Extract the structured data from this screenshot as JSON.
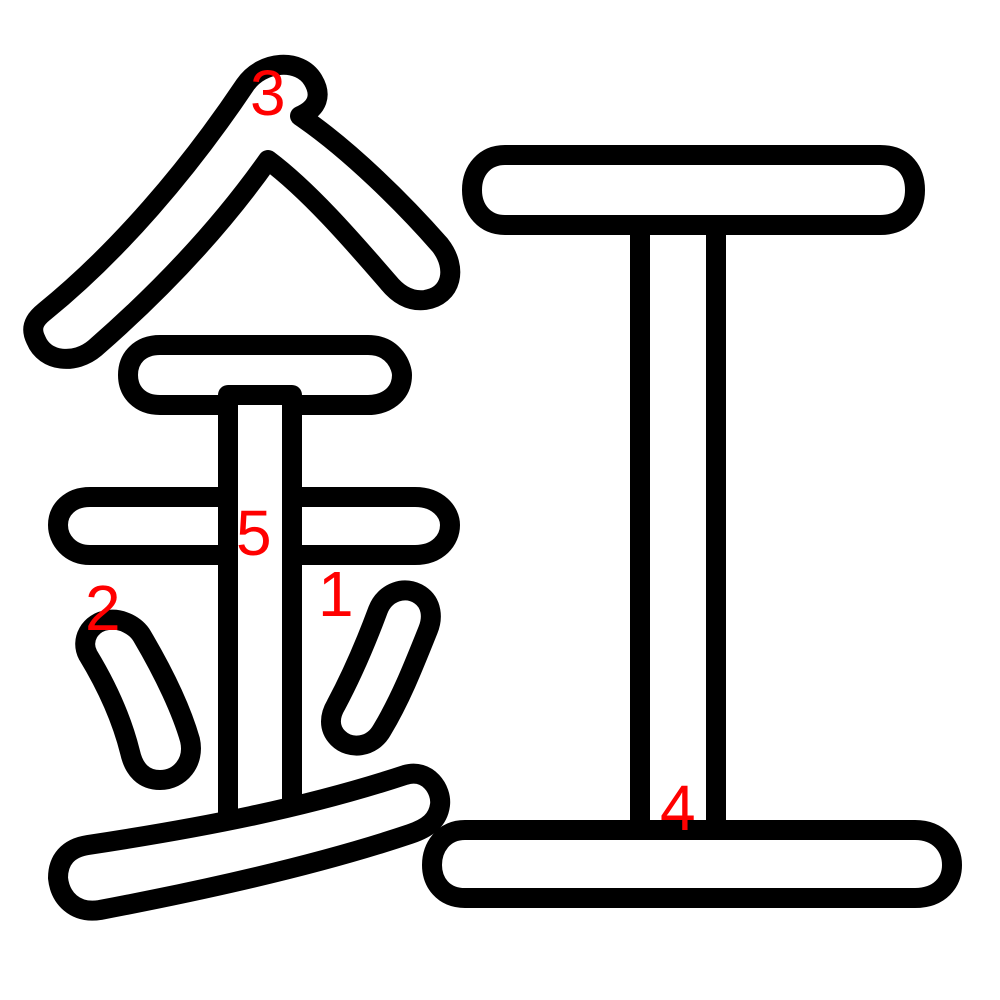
{
  "character": "釭",
  "colors": {
    "outline": "#000000",
    "fill": "#ffffff",
    "label": "#ff0000"
  },
  "stroke_labels": [
    {
      "id": "s1",
      "text": "1"
    },
    {
      "id": "s2",
      "text": "2"
    },
    {
      "id": "s3",
      "text": "3"
    },
    {
      "id": "s4",
      "text": "4"
    },
    {
      "id": "s5",
      "text": "5"
    }
  ]
}
